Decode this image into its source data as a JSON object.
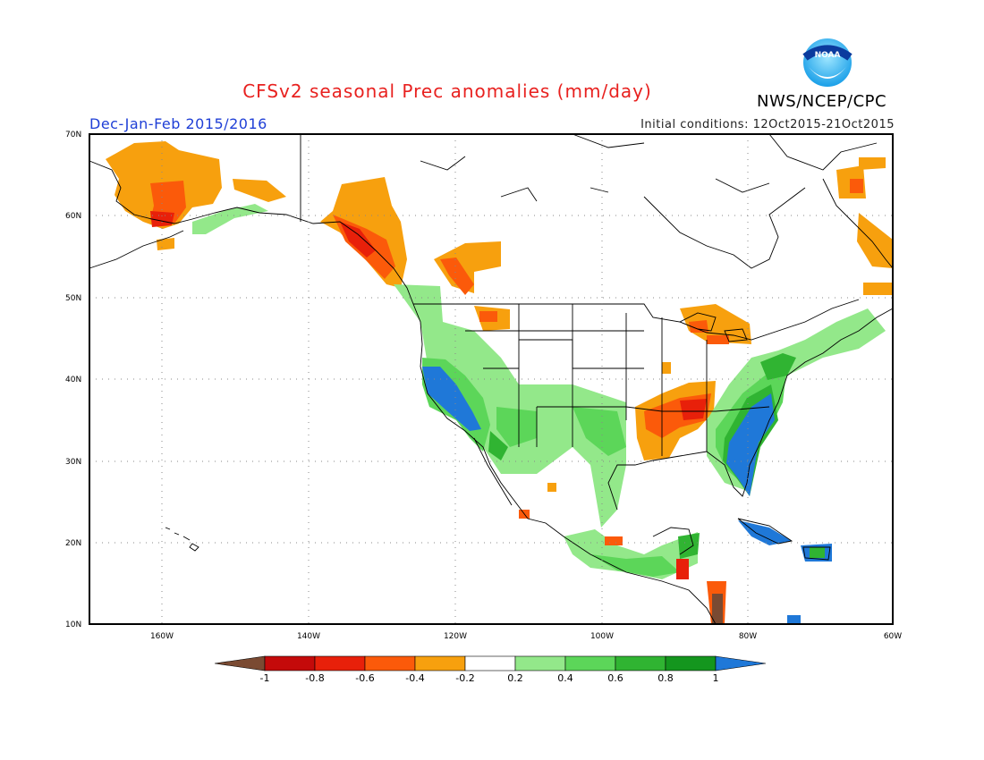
{
  "header": {
    "title": "CFSv2 seasonal Prec anomalies (mm/day)",
    "season": "Dec-Jan-Feb 2015/2016",
    "initial_conditions": "Initial conditions: 12Oct2015-21Oct2015",
    "agency": "NWS/NCEP/CPC",
    "logo_text": "NOAA"
  },
  "map": {
    "lat_labels": [
      "70N",
      "60N",
      "50N",
      "40N",
      "30N",
      "20N",
      "10N"
    ],
    "lon_labels": [
      "160W",
      "140W",
      "120W",
      "100W",
      "80W",
      "60W"
    ]
  },
  "colorbar": {
    "labels": [
      "-1",
      "-0.8",
      "-0.6",
      "-0.4",
      "-0.2",
      "0.2",
      "0.4",
      "0.6",
      "0.8",
      "1"
    ],
    "colors": [
      "#7a4a32",
      "#c40a0a",
      "#e8200a",
      "#fb5a0a",
      "#f7a00e",
      "#ffffff",
      "#93e88a",
      "#5cd659",
      "#30b432",
      "#14961e",
      "#1f78d8"
    ]
  }
}
